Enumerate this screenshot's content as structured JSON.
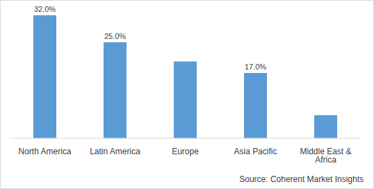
{
  "chart_data": {
    "type": "bar",
    "categories": [
      "North America",
      "Latin America",
      "Europe",
      "Asia Pacific",
      "Middle East & Africa"
    ],
    "values": [
      32,
      25,
      20,
      17,
      6
    ],
    "value_labels": [
      "32.0%",
      "25.0%",
      null,
      "17.0%",
      null
    ],
    "data_labels": true,
    "color": "#5b9bd5",
    "ylim": [
      0,
      32
    ],
    "tick_labels": "x",
    "annotations": [
      "Source: Coherent Market Insights"
    ]
  }
}
